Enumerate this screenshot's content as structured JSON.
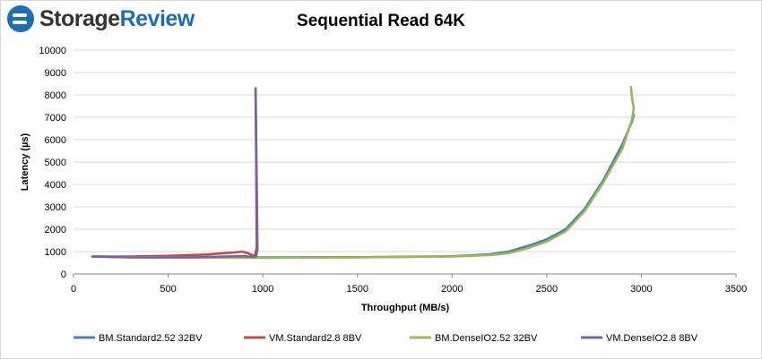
{
  "logo": {
    "name": "StorageReview",
    "part1": "Storage",
    "part2": "Review"
  },
  "chart_data": {
    "type": "line",
    "title": "Sequential Read 64K",
    "xlabel": "Throughput (MB/s)",
    "ylabel": "Latency (µs)",
    "xlim": [
      0,
      3500
    ],
    "ylim": [
      0,
      10000
    ],
    "xticks": [
      0,
      500,
      1000,
      1500,
      2000,
      2500,
      3000,
      3500
    ],
    "yticks": [
      0,
      1000,
      2000,
      3000,
      4000,
      5000,
      6000,
      7000,
      8000,
      9000,
      10000
    ],
    "grid": "horizontal",
    "legend_position": "bottom",
    "series": [
      {
        "name": "BM.Standard2.52 32BV",
        "color": "#4a7ebb",
        "points": [
          [
            100,
            780
          ],
          [
            300,
            750
          ],
          [
            600,
            740
          ],
          [
            1000,
            740
          ],
          [
            1500,
            750
          ],
          [
            2000,
            790
          ],
          [
            2200,
            880
          ],
          [
            2300,
            1000
          ],
          [
            2400,
            1250
          ],
          [
            2500,
            1550
          ],
          [
            2600,
            2000
          ],
          [
            2700,
            2900
          ],
          [
            2800,
            4200
          ],
          [
            2900,
            5800
          ],
          [
            2950,
            6800
          ],
          [
            2960,
            7100
          ]
        ]
      },
      {
        "name": "VM.Standard2.8 8BV",
        "color": "#be4b48",
        "points": [
          [
            100,
            780
          ],
          [
            300,
            780
          ],
          [
            500,
            810
          ],
          [
            700,
            870
          ],
          [
            850,
            960
          ],
          [
            890,
            1000
          ],
          [
            920,
            930
          ],
          [
            950,
            820
          ],
          [
            960,
            830
          ],
          [
            968,
            1200
          ],
          [
            965,
            5000
          ],
          [
            962,
            8300
          ]
        ]
      },
      {
        "name": "BM.DenseIO2.52 32BV",
        "color": "#98b954",
        "points": [
          [
            100,
            780
          ],
          [
            300,
            750
          ],
          [
            600,
            740
          ],
          [
            1000,
            720
          ],
          [
            1500,
            740
          ],
          [
            2000,
            780
          ],
          [
            2200,
            840
          ],
          [
            2300,
            930
          ],
          [
            2400,
            1150
          ],
          [
            2500,
            1450
          ],
          [
            2600,
            1900
          ],
          [
            2700,
            2800
          ],
          [
            2800,
            4100
          ],
          [
            2900,
            5600
          ],
          [
            2950,
            6900
          ],
          [
            2960,
            7400
          ],
          [
            2950,
            7900
          ],
          [
            2945,
            8350
          ]
        ]
      },
      {
        "name": "VM.DenseIO2.8 8BV",
        "color": "#7d60a0",
        "points": [
          [
            100,
            780
          ],
          [
            300,
            740
          ],
          [
            600,
            740
          ],
          [
            800,
            780
          ],
          [
            900,
            800
          ],
          [
            920,
            780
          ],
          [
            950,
            760
          ],
          [
            965,
            790
          ],
          [
            972,
            1100
          ],
          [
            968,
            4000
          ],
          [
            962,
            8250
          ]
        ]
      }
    ]
  }
}
